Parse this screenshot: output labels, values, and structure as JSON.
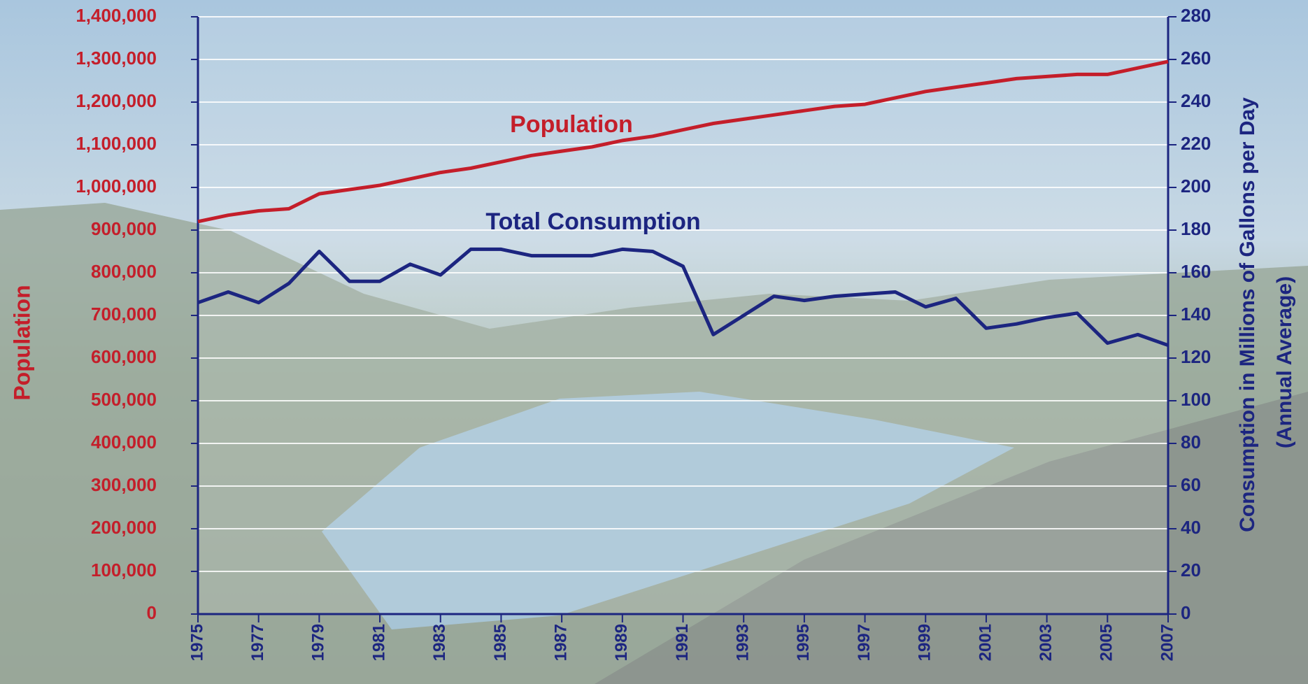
{
  "chart_data": {
    "type": "line",
    "x": [
      1975,
      1976,
      1977,
      1978,
      1979,
      1980,
      1981,
      1982,
      1983,
      1984,
      1985,
      1986,
      1987,
      1988,
      1989,
      1990,
      1991,
      1992,
      1993,
      1994,
      1995,
      1996,
      1997,
      1998,
      1999,
      2000,
      2001,
      2002,
      2003,
      2004,
      2005,
      2006,
      2007
    ],
    "xlim": [
      1975,
      2007
    ],
    "xticks": [
      1975,
      1977,
      1979,
      1981,
      1983,
      1985,
      1987,
      1989,
      1991,
      1993,
      1995,
      1997,
      1999,
      2001,
      2003,
      2005,
      2007
    ],
    "ylabel": "Population",
    "ylim": [
      0,
      1400000
    ],
    "yticks": [
      0,
      {
        "value": 100000,
        "label": "100,000"
      },
      {
        "value": 200000,
        "label": "200,000"
      },
      {
        "value": 300000,
        "label": "300,000"
      },
      {
        "value": 400000,
        "label": "400,000"
      },
      {
        "value": 500000,
        "label": "500,000"
      },
      {
        "value": 600000,
        "label": "600,000"
      },
      {
        "value": 700000,
        "label": "700,000"
      },
      {
        "value": 800000,
        "label": "800,000"
      },
      {
        "value": 900000,
        "label": "900,000"
      },
      {
        "value": 1000000,
        "label": "1,000,000"
      },
      {
        "value": 1100000,
        "label": "1,100,000"
      },
      {
        "value": 1200000,
        "label": "1,200,000"
      },
      {
        "value": 1300000,
        "label": "1,300,000"
      },
      {
        "value": 1400000,
        "label": "1,400,000"
      }
    ],
    "y2label": [
      "Consumption in Millions of Gallons per Day",
      "(Annual Average)"
    ],
    "y2lim": [
      0,
      280
    ],
    "y2ticks": [
      0,
      20,
      40,
      60,
      80,
      100,
      120,
      140,
      160,
      180,
      200,
      220,
      240,
      260,
      280
    ],
    "grid": true,
    "series": [
      {
        "name": "Population",
        "color": "#c41e2a",
        "values": [
          920000,
          935000,
          945000,
          950000,
          985000,
          995000,
          1005000,
          1020000,
          1035000,
          1045000,
          1060000,
          1075000,
          1085000,
          1095000,
          1110000,
          1120000,
          1135000,
          1150000,
          1160000,
          1170000,
          1180000,
          1190000,
          1195000,
          1210000,
          1225000,
          1235000,
          1245000,
          1255000,
          1260000,
          1265000,
          1265000,
          1280000,
          1295000
        ]
      },
      {
        "name": "Total Consumption",
        "color": "#1c2580",
        "axis": "y2",
        "values": [
          146,
          151,
          146,
          155,
          170,
          156,
          156,
          164,
          159,
          171,
          171,
          168,
          168,
          168,
          171,
          170,
          163,
          131,
          140,
          149,
          147,
          149,
          150,
          151,
          144,
          148,
          134,
          136,
          139,
          141,
          127,
          131,
          126
        ]
      }
    ]
  }
}
